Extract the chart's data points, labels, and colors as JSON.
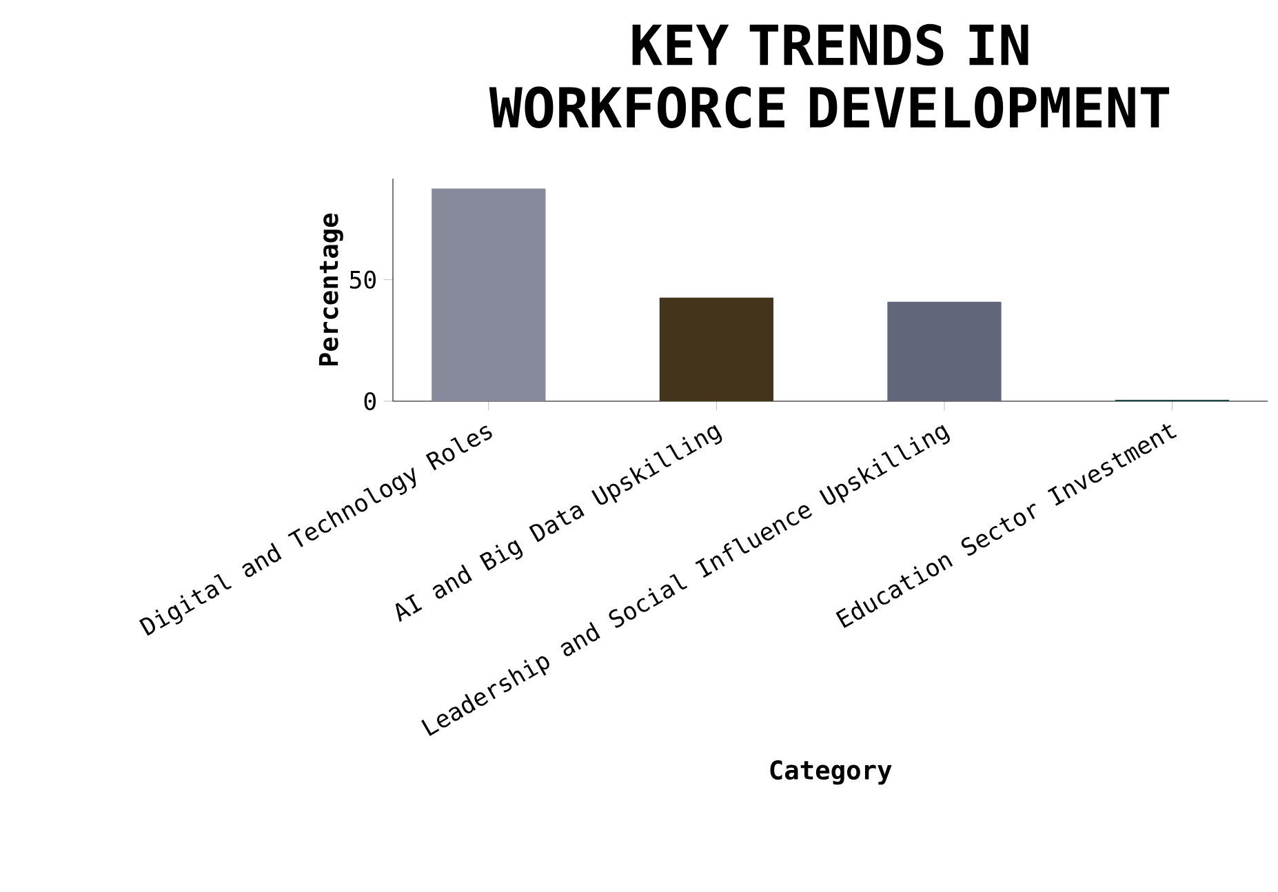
{
  "chart_data": {
    "type": "bar",
    "title": "KEY TRENDS IN WORKFORCE DEVELOPMENT",
    "xlabel": "Category",
    "ylabel": "Percentage",
    "categories": [
      "Digital and Technology Roles",
      "AI and Big Data Upskilling",
      "Leadership and Social Influence Upskilling",
      "Education Sector Investment"
    ],
    "values": [
      87.5,
      42.6,
      40.9,
      0.6
    ],
    "colors": [
      "#878a9a",
      "#45341c",
      "#62667a",
      "#1f4a4a"
    ],
    "ylim": [
      0,
      91.5
    ],
    "yticks": [
      0,
      50
    ]
  }
}
